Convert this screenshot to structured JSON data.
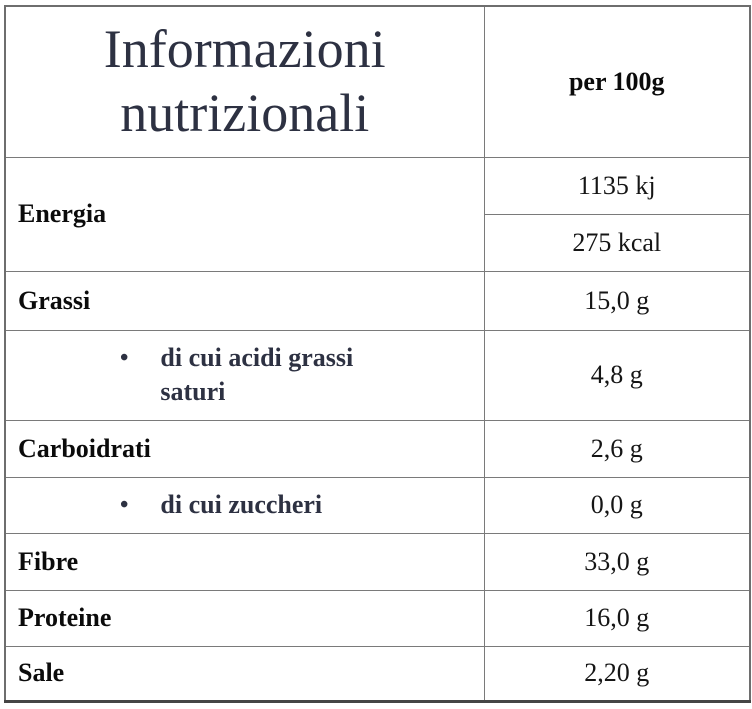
{
  "header": {
    "title": "Informazioni nutrizionali",
    "column_label": "per 100g"
  },
  "icons": {
    "bullet": "•"
  },
  "rows": [
    {
      "label": "Energia",
      "sub": false,
      "values": [
        "1135 kj",
        "275 kcal"
      ]
    },
    {
      "label": "Grassi",
      "sub": false,
      "values": [
        "15,0 g"
      ]
    },
    {
      "label": "di cui acidi grassi saturi",
      "sub": true,
      "values": [
        "4,8 g"
      ]
    },
    {
      "label": "Carboidrati",
      "sub": false,
      "values": [
        "2,6 g"
      ]
    },
    {
      "label": "di cui zuccheri",
      "sub": true,
      "values": [
        "0,0 g"
      ]
    },
    {
      "label": "Fibre",
      "sub": false,
      "values": [
        "33,0 g"
      ]
    },
    {
      "label": "Proteine",
      "sub": false,
      "values": [
        "16,0 g"
      ]
    },
    {
      "label": "Sale",
      "sub": false,
      "values": [
        "2,20 g"
      ]
    }
  ],
  "colors": {
    "title_text": "#2d3142",
    "label_text": "#0b0b0b",
    "value_text": "#151515",
    "sub_label_text": "#2d3142",
    "inner_border": "#7a7a7a",
    "outer_border": "#6e6e6e",
    "background": "#ffffff"
  }
}
